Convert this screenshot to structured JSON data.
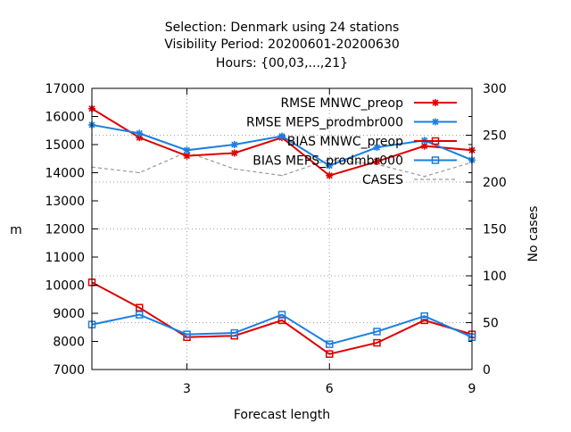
{
  "chart_data": {
    "type": "line",
    "title_lines": [
      "Selection: Denmark using    24 stations",
      "Visibility   Period: 20200601-20200630",
      "Hours: {00,03,...,21}"
    ],
    "xlabel": "Forecast length",
    "ylabel": "m",
    "y2label": "No cases",
    "x": [
      1,
      2,
      3,
      4,
      5,
      6,
      7,
      8,
      9
    ],
    "xlim": [
      1,
      9
    ],
    "xticks": [
      3,
      6,
      9
    ],
    "ylim": [
      7000,
      17000
    ],
    "yticks": [
      7000,
      8000,
      9000,
      10000,
      11000,
      12000,
      13000,
      14000,
      15000,
      16000,
      17000
    ],
    "y2lim": [
      0,
      300
    ],
    "y2ticks": [
      0,
      50,
      100,
      150,
      200,
      250,
      300
    ],
    "grid": true,
    "legend_position": "top-right",
    "series": [
      {
        "name": "RMSE MNWC_preop",
        "axis": "y",
        "color": "#dd0000",
        "marker": "star",
        "dash": "solid",
        "values": [
          16280,
          15250,
          14600,
          14700,
          15250,
          13900,
          14400,
          14950,
          14800
        ]
      },
      {
        "name": "RMSE MEPS_prodmbr000",
        "axis": "y",
        "color": "#1a7fe0",
        "marker": "star",
        "dash": "solid",
        "values": [
          15700,
          15400,
          14800,
          15000,
          15300,
          14250,
          14900,
          15150,
          14450
        ]
      },
      {
        "name": "BIAS MNWC_preop",
        "axis": "y",
        "color": "#dd0000",
        "marker": "square",
        "dash": "solid",
        "values": [
          10100,
          9200,
          8150,
          8200,
          8750,
          7550,
          7950,
          8750,
          8250
        ]
      },
      {
        "name": "BIAS MEPS_prodmbr000",
        "axis": "y",
        "color": "#1a7fe0",
        "marker": "square",
        "dash": "solid",
        "values": [
          8600,
          8950,
          8250,
          8300,
          8950,
          7900,
          8350,
          8900,
          8150
        ]
      },
      {
        "name": "CASES",
        "axis": "y2",
        "color": "#999999",
        "marker": "none",
        "dash": "dashed",
        "values": [
          216,
          210,
          232,
          214,
          207,
          224,
          219,
          206,
          221
        ]
      }
    ]
  }
}
